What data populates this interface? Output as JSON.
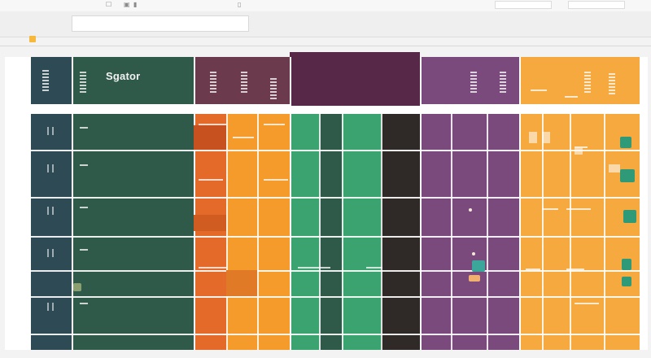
{
  "window": {
    "toolbar_icons": [
      "menu-icon",
      "save-icon",
      "undo-icon",
      "redo-icon",
      "print-icon"
    ],
    "toolbar_glyphs": [
      "☐",
      "▣",
      "▮",
      "▯",
      "▢"
    ]
  },
  "sheet": {
    "header_title": "Sgator",
    "colors": {
      "teal": "#2e4b55",
      "green": "#2f5a4a",
      "maroon": "#6b3a4d",
      "plum": "#582848",
      "orange": "#e46a2a",
      "amber": "#f49b2c",
      "mint": "#3aa370",
      "dark": "#2f2a28",
      "violet": "#7a4a7c",
      "gold": "#f6a93e"
    }
  }
}
